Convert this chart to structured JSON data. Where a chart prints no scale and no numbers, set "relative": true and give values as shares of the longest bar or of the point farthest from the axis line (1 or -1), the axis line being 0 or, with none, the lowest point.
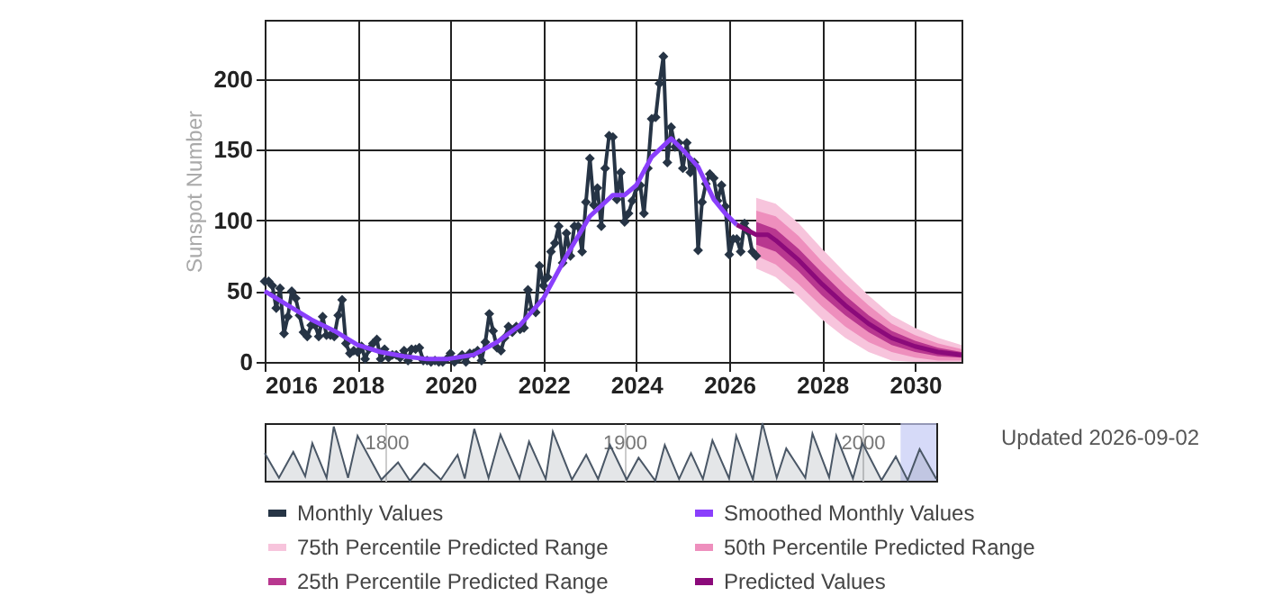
{
  "chart_data": [
    {
      "type": "line",
      "ylabel": "Sunspot Number",
      "xlim": [
        "2016",
        "2031"
      ],
      "ylim": [
        0,
        242
      ],
      "xticks": [
        "2016",
        "2018",
        "2020",
        "2022",
        "2024",
        "2026",
        "2028",
        "2030"
      ],
      "yticks": [
        0,
        50,
        100,
        150,
        200
      ],
      "grid": true,
      "legend": "bottom",
      "annotations": [
        "Updated 2026-09-02"
      ],
      "series": [
        {
          "name": "Monthly Values",
          "type": "line",
          "marker": "diamond",
          "color": "#263445",
          "x": [
            "2016-01",
            "2016-02",
            "2016-03",
            "2016-04",
            "2016-05",
            "2016-06",
            "2016-07",
            "2016-08",
            "2016-09",
            "2016-10",
            "2016-11",
            "2016-12",
            "2017-01",
            "2017-02",
            "2017-03",
            "2017-04",
            "2017-05",
            "2017-06",
            "2017-07",
            "2017-08",
            "2017-09",
            "2017-10",
            "2017-11",
            "2017-12",
            "2018-01",
            "2018-02",
            "2018-03",
            "2018-04",
            "2018-05",
            "2018-06",
            "2018-07",
            "2018-08",
            "2018-09",
            "2018-10",
            "2018-11",
            "2018-12",
            "2019-01",
            "2019-02",
            "2019-03",
            "2019-04",
            "2019-05",
            "2019-06",
            "2019-07",
            "2019-08",
            "2019-09",
            "2019-10",
            "2019-11",
            "2019-12",
            "2020-01",
            "2020-02",
            "2020-03",
            "2020-04",
            "2020-05",
            "2020-06",
            "2020-07",
            "2020-08",
            "2020-09",
            "2020-10",
            "2020-11",
            "2020-12",
            "2021-01",
            "2021-02",
            "2021-03",
            "2021-04",
            "2021-05",
            "2021-06",
            "2021-07",
            "2021-08",
            "2021-09",
            "2021-10",
            "2021-11",
            "2021-12",
            "2022-01",
            "2022-02",
            "2022-03",
            "2022-04",
            "2022-05",
            "2022-06",
            "2022-07",
            "2022-08",
            "2022-09",
            "2022-10",
            "2022-11",
            "2022-12",
            "2023-01",
            "2023-02",
            "2023-03",
            "2023-04",
            "2023-05",
            "2023-06",
            "2023-07",
            "2023-08",
            "2023-09",
            "2023-10",
            "2023-11",
            "2023-12",
            "2024-01",
            "2024-02",
            "2024-03",
            "2024-04",
            "2024-05",
            "2024-06",
            "2024-07",
            "2024-08",
            "2024-09",
            "2024-10",
            "2024-11",
            "2024-12",
            "2025-01",
            "2025-02",
            "2025-03",
            "2025-04",
            "2025-05",
            "2025-06",
            "2025-07",
            "2025-08",
            "2025-09",
            "2025-10",
            "2025-11",
            "2025-12",
            "2026-01",
            "2026-02",
            "2026-03",
            "2026-04",
            "2026-05",
            "2026-06",
            "2026-07",
            "2026-08"
          ],
          "values": [
            57,
            57,
            54,
            38,
            52,
            20,
            32,
            50,
            45,
            33,
            21,
            18,
            26,
            26,
            18,
            32,
            19,
            19,
            18,
            33,
            44,
            13,
            6,
            8,
            7,
            11,
            2,
            9,
            13,
            16,
            2,
            9,
            3,
            5,
            5,
            3,
            8,
            1,
            9,
            9,
            10,
            1,
            1,
            0,
            1,
            0,
            0,
            2,
            6,
            0,
            2,
            5,
            0,
            6,
            6,
            8,
            1,
            14,
            34,
            22,
            10,
            8,
            17,
            25,
            21,
            25,
            23,
            24,
            51,
            37,
            35,
            68,
            54,
            60,
            78,
            84,
            96,
            70,
            91,
            75,
            96,
            96,
            78,
            113,
            144,
            111,
            123,
            96,
            137,
            160,
            159,
            115,
            134,
            99,
            105,
            114,
            123,
            125,
            105,
            137,
            172,
            173,
            197,
            216,
            141,
            166,
            152,
            155,
            137,
            155,
            134,
            141,
            79,
            113,
            126,
            133,
            130,
            114,
            125,
            110,
            76,
            87,
            87,
            78,
            98,
            92,
            78,
            75
          ]
        },
        {
          "name": "Smoothed Monthly Values",
          "type": "line",
          "color": "#8a3ffc",
          "x": [
            "2016-01",
            "2016-07",
            "2017-01",
            "2017-07",
            "2018-01",
            "2018-07",
            "2019-01",
            "2019-07",
            "2019-12",
            "2020-07",
            "2021-01",
            "2021-07",
            "2022-01",
            "2022-07",
            "2023-01",
            "2023-07",
            "2023-10",
            "2024-01",
            "2024-05",
            "2024-10",
            "2025-01",
            "2025-05",
            "2025-09",
            "2025-12",
            "2026-03"
          ],
          "values": [
            50,
            40,
            30,
            22,
            12,
            7,
            4,
            2,
            2,
            5,
            14,
            26,
            45,
            75,
            103,
            118,
            118,
            125,
            145,
            158,
            150,
            138,
            115,
            105,
            97
          ]
        },
        {
          "name": "75th Percentile Predicted Range",
          "type": "area",
          "color": "#f7c4dc",
          "x": [
            "2026-08",
            "2027-01",
            "2027-07",
            "2028-01",
            "2028-07",
            "2029-01",
            "2029-07",
            "2030-01",
            "2030-07",
            "2031-01"
          ],
          "values": [
            null,
            null,
            null,
            null,
            null,
            null,
            null,
            null,
            null,
            null
          ],
          "lower": [
            66,
            60,
            46,
            30,
            17,
            7,
            1,
            0,
            0,
            0
          ],
          "upper": [
            116,
            112,
            98,
            80,
            63,
            47,
            33,
            24,
            17,
            12
          ]
        },
        {
          "name": "50th Percentile Predicted Range",
          "type": "area",
          "color": "#ee8fbd",
          "x": [
            "2026-08",
            "2027-01",
            "2027-07",
            "2028-01",
            "2028-07",
            "2029-01",
            "2029-07",
            "2030-01",
            "2030-07",
            "2031-01"
          ],
          "values": [
            null,
            null,
            null,
            null,
            null,
            null,
            null,
            null,
            null,
            null
          ],
          "lower": [
            75,
            69,
            55,
            39,
            25,
            14,
            7,
            3,
            1,
            1
          ],
          "upper": [
            107,
            103,
            89,
            71,
            55,
            40,
            27,
            19,
            13,
            9
          ]
        },
        {
          "name": "25th Percentile Predicted Range",
          "type": "area",
          "color": "#b8378f",
          "x": [
            "2026-08",
            "2027-01",
            "2027-07",
            "2028-01",
            "2028-07",
            "2029-01",
            "2029-07",
            "2030-01",
            "2030-07",
            "2031-01"
          ],
          "values": [
            null,
            null,
            null,
            null,
            null,
            null,
            null,
            null,
            null,
            null
          ],
          "lower": [
            83,
            78,
            64,
            47,
            33,
            21,
            12,
            7,
            4,
            3
          ],
          "upper": [
            99,
            94,
            80,
            63,
            47,
            33,
            22,
            15,
            10,
            7
          ]
        },
        {
          "name": "Predicted Values",
          "type": "line",
          "color": "#8b0a7a",
          "x": [
            "2026-03",
            "2026-08",
            "2026-11",
            "2027-01",
            "2027-07",
            "2028-01",
            "2028-07",
            "2029-01",
            "2029-07",
            "2030-01",
            "2030-07",
            "2031-01"
          ],
          "values": [
            97,
            90,
            90,
            86,
            72,
            55,
            40,
            27,
            17,
            11,
            7,
            5
          ]
        }
      ]
    },
    {
      "type": "area",
      "relative": true,
      "xlim": [
        1749,
        2031
      ],
      "xticks": [
        1800,
        1900,
        2000
      ],
      "grid": "x",
      "bands": [
        {
          "axis": "x",
          "from": 2016,
          "to": 2031,
          "color": "#c5cbf5"
        }
      ],
      "series": [
        {
          "color": "#4a5766",
          "x": [
            1749,
            1755,
            1761,
            1766,
            1769,
            1775,
            1778,
            1784,
            1788,
            1798,
            1805,
            1810,
            1816,
            1823,
            1830,
            1833,
            1837,
            1843,
            1848,
            1856,
            1860,
            1867,
            1870,
            1878,
            1884,
            1889,
            1894,
            1901,
            1906,
            1913,
            1917,
            1923,
            1928,
            1933,
            1937,
            1944,
            1947,
            1954,
            1958,
            1964,
            1968,
            1976,
            1979,
            1986,
            1989,
            1996,
            2000,
            2008,
            2014,
            2019,
            2024,
            2031
          ],
          "values": [
            0.48,
            0.05,
            0.5,
            0.08,
            0.65,
            0.05,
            0.94,
            0.05,
            0.78,
            0.02,
            0.32,
            0,
            0.3,
            0.02,
            0.45,
            0.04,
            0.9,
            0.05,
            0.8,
            0.04,
            0.68,
            0.03,
            0.85,
            0.02,
            0.45,
            0.03,
            0.62,
            0.02,
            0.4,
            0,
            0.62,
            0.03,
            0.48,
            0.03,
            0.7,
            0.04,
            0.78,
            0.02,
            1,
            0.05,
            0.56,
            0.05,
            0.82,
            0.06,
            0.78,
            0.04,
            0.65,
            0.01,
            0.42,
            0.01,
            0.55,
            0.03
          ]
        }
      ]
    }
  ]
}
